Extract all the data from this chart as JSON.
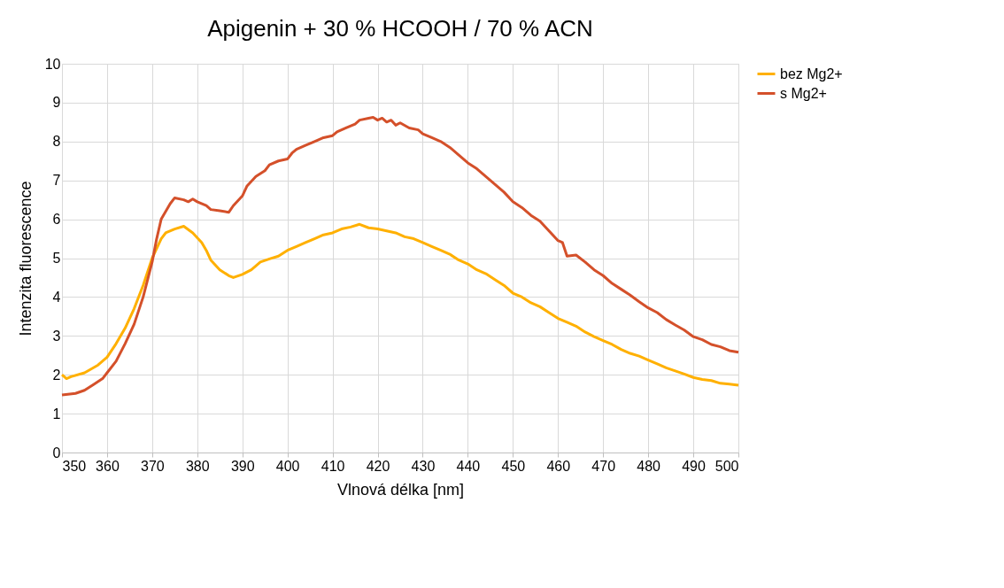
{
  "chart_data": {
    "type": "line",
    "title": "Apigenin + 30 % HCOOH / 70 % ACN",
    "xlabel": "Vlnová délka [nm]",
    "ylabel": "Intenzita fluorescence",
    "xlim": [
      350,
      500
    ],
    "xticks": [
      350,
      360,
      370,
      380,
      390,
      400,
      410,
      420,
      430,
      440,
      450,
      460,
      470,
      480,
      490,
      500
    ],
    "ylim": [
      0,
      10
    ],
    "yticks": [
      0,
      1,
      2,
      3,
      4,
      5,
      6,
      7,
      8,
      9,
      10
    ],
    "grid": true,
    "legend": "right",
    "marker": "none",
    "line_style": "solid",
    "series": [
      {
        "name": "bez Mg2+",
        "color": "#ffb000",
        "x": [
          350,
          351,
          352,
          355,
          358,
          360,
          362,
          364,
          366,
          368,
          370,
          372,
          373,
          375,
          377,
          379,
          381,
          382,
          383,
          385,
          387,
          388,
          390,
          392,
          394,
          396,
          398,
          400,
          402,
          404,
          406,
          408,
          410,
          412,
          414,
          416,
          418,
          420,
          422,
          424,
          426,
          428,
          430,
          432,
          434,
          436,
          438,
          440,
          442,
          444,
          446,
          448,
          450,
          452,
          454,
          456,
          458,
          460,
          462,
          464,
          466,
          468,
          470,
          472,
          474,
          476,
          478,
          480,
          482,
          484,
          486,
          488,
          490,
          492,
          494,
          496,
          498,
          500
        ],
        "values": [
          2.0,
          1.9,
          1.95,
          2.05,
          2.25,
          2.45,
          2.8,
          3.2,
          3.7,
          4.3,
          5.0,
          5.5,
          5.65,
          5.75,
          5.82,
          5.65,
          5.4,
          5.2,
          4.95,
          4.7,
          4.55,
          4.5,
          4.58,
          4.7,
          4.9,
          4.98,
          5.05,
          5.2,
          5.3,
          5.4,
          5.5,
          5.6,
          5.65,
          5.75,
          5.8,
          5.87,
          5.78,
          5.75,
          5.7,
          5.65,
          5.55,
          5.5,
          5.4,
          5.3,
          5.2,
          5.1,
          4.95,
          4.85,
          4.7,
          4.6,
          4.45,
          4.3,
          4.1,
          4.0,
          3.85,
          3.75,
          3.6,
          3.45,
          3.35,
          3.25,
          3.1,
          2.98,
          2.88,
          2.78,
          2.65,
          2.55,
          2.48,
          2.38,
          2.28,
          2.18,
          2.1,
          2.02,
          1.93,
          1.88,
          1.85,
          1.78,
          1.76,
          1.73
        ]
      },
      {
        "name": "s Mg2+",
        "color": "#d4502a",
        "x": [
          350,
          353,
          355,
          357,
          359,
          360,
          362,
          364,
          366,
          368,
          370,
          371,
          372,
          374,
          375,
          377,
          378,
          379,
          380,
          382,
          383,
          385,
          387,
          388,
          390,
          391,
          393,
          395,
          396,
          398,
          400,
          401,
          402,
          404,
          406,
          408,
          410,
          411,
          413,
          415,
          416,
          418,
          419,
          420,
          421,
          422,
          423,
          424,
          425,
          427,
          429,
          430,
          432,
          434,
          436,
          438,
          440,
          442,
          444,
          446,
          448,
          450,
          452,
          454,
          456,
          458,
          460,
          461,
          462,
          464,
          466,
          468,
          470,
          472,
          474,
          476,
          478,
          480,
          482,
          484,
          486,
          488,
          490,
          492,
          494,
          496,
          498,
          500
        ],
        "values": [
          1.48,
          1.52,
          1.6,
          1.75,
          1.9,
          2.05,
          2.35,
          2.8,
          3.3,
          4.0,
          4.9,
          5.5,
          6.0,
          6.4,
          6.55,
          6.5,
          6.45,
          6.52,
          6.45,
          6.35,
          6.25,
          6.22,
          6.18,
          6.35,
          6.6,
          6.85,
          7.1,
          7.25,
          7.4,
          7.5,
          7.55,
          7.7,
          7.8,
          7.9,
          8.0,
          8.1,
          8.15,
          8.25,
          8.35,
          8.45,
          8.55,
          8.6,
          8.62,
          8.55,
          8.6,
          8.5,
          8.55,
          8.42,
          8.48,
          8.35,
          8.3,
          8.2,
          8.1,
          8.0,
          7.85,
          7.65,
          7.45,
          7.3,
          7.1,
          6.9,
          6.7,
          6.45,
          6.3,
          6.1,
          5.95,
          5.7,
          5.45,
          5.4,
          5.05,
          5.08,
          4.9,
          4.7,
          4.55,
          4.35,
          4.2,
          4.05,
          3.88,
          3.72,
          3.6,
          3.42,
          3.28,
          3.15,
          2.98,
          2.9,
          2.78,
          2.72,
          2.62,
          2.58
        ]
      }
    ]
  }
}
